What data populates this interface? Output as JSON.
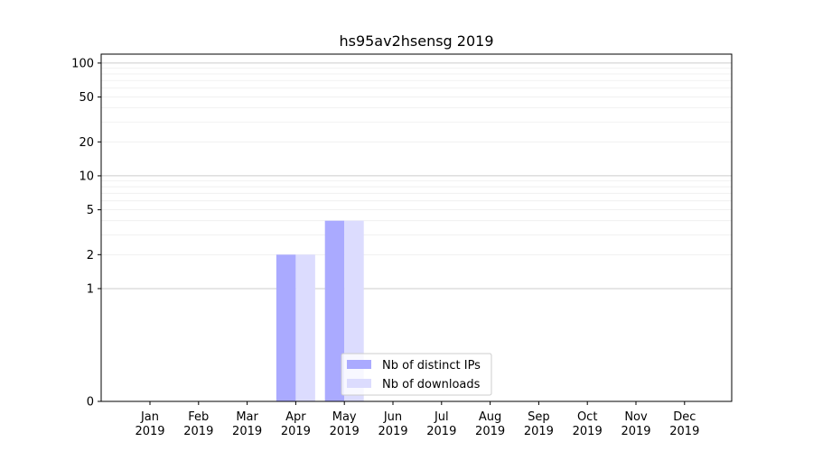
{
  "chart_data": {
    "type": "bar",
    "title": "hs95av2hsensg 2019",
    "xlabel": "",
    "ylabel": "",
    "yscale": "symlog",
    "ylim": [
      0,
      120
    ],
    "y_ticks": [
      0,
      1,
      2,
      5,
      10,
      20,
      50,
      100
    ],
    "y_tick_labels": [
      "0",
      "1",
      "2",
      "5",
      "10",
      "20",
      "50",
      "100"
    ],
    "categories": [
      "Jan",
      "Feb",
      "Mar",
      "Apr",
      "May",
      "Jun",
      "Jul",
      "Aug",
      "Sep",
      "Oct",
      "Nov",
      "Dec"
    ],
    "category_sublabels": [
      "2019",
      "2019",
      "2019",
      "2019",
      "2019",
      "2019",
      "2019",
      "2019",
      "2019",
      "2019",
      "2019",
      "2019"
    ],
    "series": [
      {
        "name": "Nb of distinct IPs",
        "values": [
          0,
          0,
          0,
          2,
          4,
          0,
          0,
          0,
          0,
          0,
          0,
          0
        ],
        "color": "#aaaaff"
      },
      {
        "name": "Nb of downloads",
        "values": [
          0,
          0,
          0,
          2,
          4,
          0,
          0,
          0,
          0,
          0,
          0,
          0
        ],
        "color": "#dcdcfe"
      }
    ],
    "grid": true,
    "legend_position": "bottom-center"
  }
}
